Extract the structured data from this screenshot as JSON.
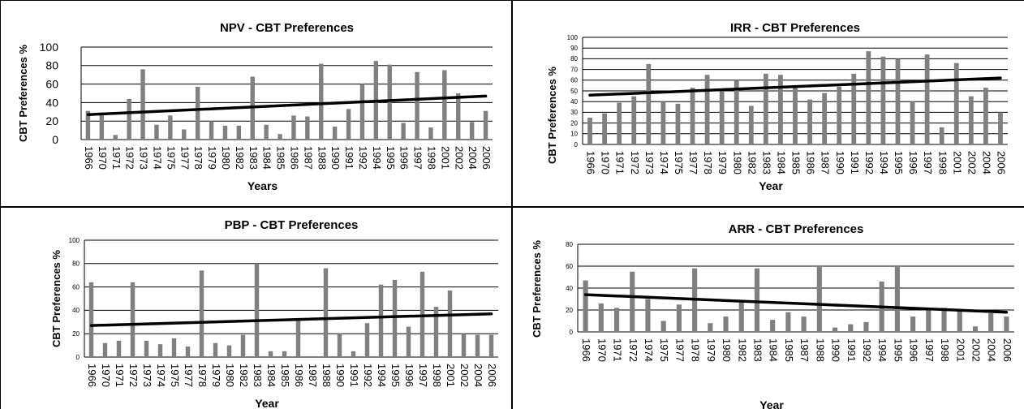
{
  "chart_data": [
    {
      "type": "bar",
      "title": "NPV - CBT Preferences",
      "xlabel": "Years",
      "ylabel": "CBT Preferences %",
      "ylim": [
        0,
        100
      ],
      "yticks": [
        0,
        20,
        40,
        60,
        80,
        100
      ],
      "grid": true,
      "legend": "none",
      "bar_color": "#808080",
      "trend_color": "#000000",
      "categories": [
        "1966",
        "1970",
        "1971",
        "1972",
        "1973",
        "1974",
        "1975",
        "1977",
        "1978",
        "1979",
        "1980",
        "1982",
        "1983",
        "1984",
        "1985",
        "1986",
        "1987",
        "1988",
        "1990",
        "1991",
        "1992",
        "1994",
        "1995",
        "1996",
        "1997",
        "1998",
        "2001",
        "2002",
        "2004",
        "2006"
      ],
      "values": [
        31,
        28,
        5,
        44,
        76,
        16,
        26,
        11,
        57,
        20,
        15,
        15,
        68,
        16,
        6,
        26,
        25,
        82,
        14,
        33,
        60,
        85,
        81,
        18,
        73,
        13,
        75,
        50,
        19,
        31
      ],
      "trendline": {
        "start": 27,
        "end": 47
      }
    },
    {
      "type": "bar",
      "title": "IRR - CBT Preferences",
      "xlabel": "Year",
      "ylabel": "CBT Preferences %",
      "ylim": [
        0,
        100
      ],
      "yticks": [
        0,
        10,
        20,
        30,
        40,
        50,
        60,
        70,
        80,
        90,
        100
      ],
      "grid": true,
      "legend": "none",
      "bar_color": "#808080",
      "trend_color": "#000000",
      "categories": [
        "1966",
        "1970",
        "1971",
        "1972",
        "1973",
        "1974",
        "1975",
        "1977",
        "1978",
        "1979",
        "1980",
        "1982",
        "1983",
        "1984",
        "1985",
        "1986",
        "1987",
        "1990",
        "1991",
        "1992",
        "1994",
        "1995",
        "1996",
        "1997",
        "1998",
        "2001",
        "2002",
        "2004",
        "2006"
      ],
      "values": [
        25,
        29,
        39,
        45,
        75,
        40,
        38,
        53,
        65,
        50,
        60,
        36,
        66,
        65,
        53,
        42,
        48,
        54,
        66,
        87,
        82,
        80,
        40,
        84,
        16,
        76,
        45,
        53,
        30
      ],
      "trendline": {
        "start": 46,
        "end": 62
      }
    },
    {
      "type": "bar",
      "title": "PBP - CBT Preferences",
      "xlabel": "Year",
      "ylabel": "CBT Preferences %",
      "ylim": [
        0,
        100
      ],
      "yticks": [
        0,
        20,
        40,
        60,
        80,
        100
      ],
      "grid": true,
      "legend": "none",
      "bar_color": "#808080",
      "trend_color": "#000000",
      "categories": [
        "1966",
        "1970",
        "1971",
        "1972",
        "1973",
        "1974",
        "1975",
        "1977",
        "1978",
        "1979",
        "1980",
        "1982",
        "1983",
        "1984",
        "1985",
        "1986",
        "1987",
        "1988",
        "1990",
        "1991",
        "1992",
        "1994",
        "1995",
        "1996",
        "1997",
        "1998",
        "2001",
        "2002",
        "2004",
        "2006"
      ],
      "values": [
        64,
        12,
        14,
        64,
        14,
        11,
        16,
        9,
        74,
        12,
        10,
        19,
        80,
        5,
        5,
        31,
        0,
        76,
        20,
        5,
        29,
        62,
        66,
        26,
        73,
        43,
        57,
        20,
        19,
        19
      ],
      "trendline": {
        "start": 27,
        "end": 37
      }
    },
    {
      "type": "bar",
      "title": "ARR - CBT Preferences",
      "xlabel": "Year",
      "ylabel": "CBT Preferences %",
      "ylim": [
        0,
        80
      ],
      "yticks": [
        0,
        20,
        40,
        60,
        80
      ],
      "grid": true,
      "legend": "none",
      "bar_color": "#808080",
      "trend_color": "#000000",
      "categories": [
        "1966",
        "1970",
        "1971",
        "1972",
        "1974",
        "1975",
        "1977",
        "1978",
        "1979",
        "1980",
        "1982",
        "1983",
        "1984",
        "1985",
        "1987",
        "1988",
        "1990",
        "1991",
        "1992",
        "1994",
        "1995",
        "1996",
        "1997",
        "1998",
        "2001",
        "2002",
        "2004",
        "2006"
      ],
      "values": [
        47,
        26,
        22,
        55,
        30,
        10,
        25,
        58,
        8,
        14,
        27,
        58,
        11,
        18,
        14,
        60,
        4,
        7,
        9,
        46,
        60,
        14,
        20,
        22,
        20,
        5,
        17,
        14
      ],
      "trendline": {
        "start": 34,
        "end": 18
      }
    }
  ]
}
